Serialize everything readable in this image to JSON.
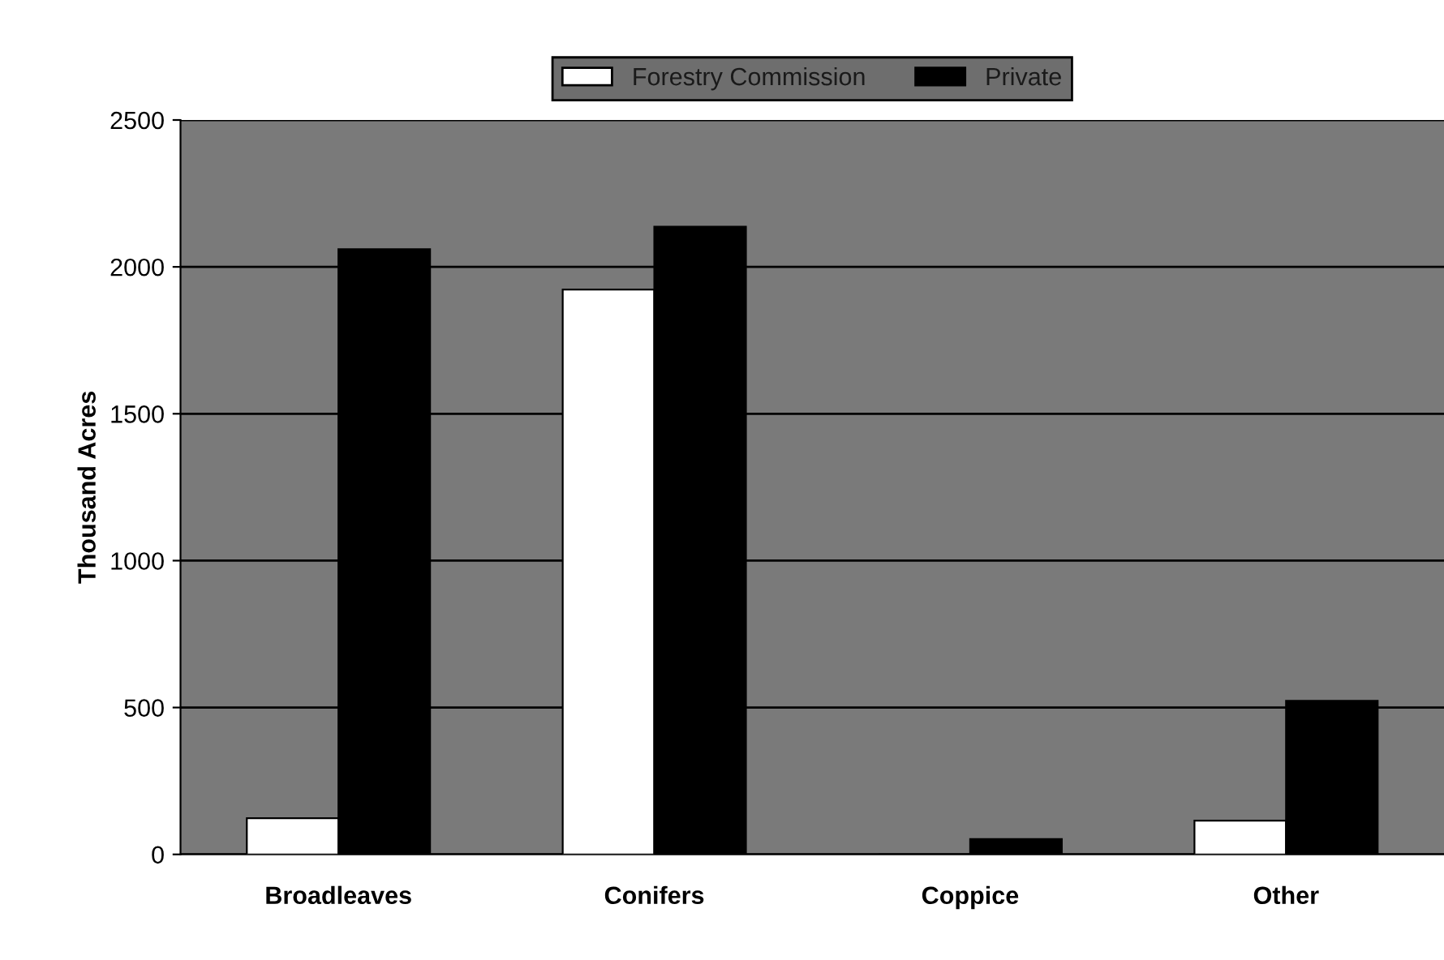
{
  "chart_data": {
    "type": "bar",
    "ylabel": "Thousand Acres",
    "categories": [
      "Broadleaves",
      "Conifers",
      "Coppice",
      "Other"
    ],
    "series": [
      {
        "name": "Forestry Commission",
        "color": "#ffffff",
        "values": [
          123,
          1923,
          0,
          115
        ]
      },
      {
        "name": "Private",
        "color": "#000000",
        "values": [
          2060,
          2137,
          52,
          523
        ]
      }
    ],
    "ylim": [
      0,
      2500
    ],
    "yticks": [
      0,
      500,
      1000,
      1500,
      2000,
      2500
    ],
    "grid": "y",
    "legend": "top"
  }
}
